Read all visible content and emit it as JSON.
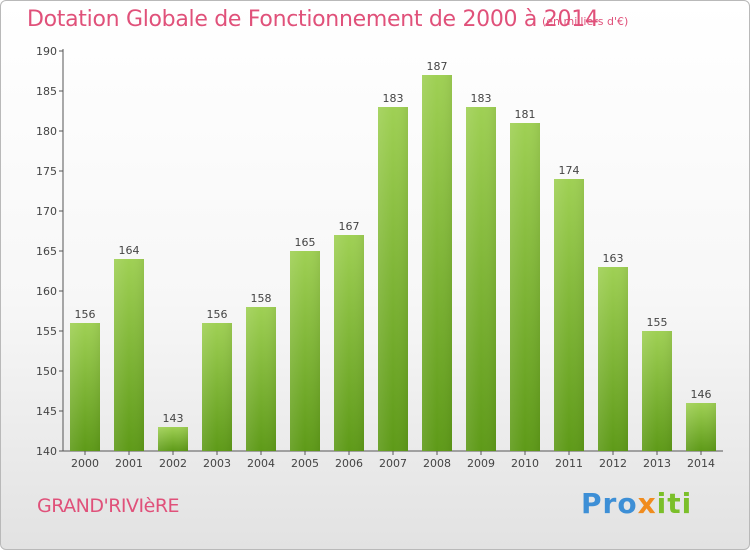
{
  "title": "Dotation Globale de Fonctionnement de 2000 à 2014",
  "unit_note": "(en milliers d'€)",
  "commune": "GRAND'RIVIèRE",
  "brand": {
    "p1": "Pro",
    "p2": "x",
    "p3": "iti"
  },
  "colors": {
    "accent": "#e0517a",
    "bar_top": "#9fd054",
    "bar_bottom": "#5e9a18"
  },
  "chart_data": {
    "type": "bar",
    "categories": [
      "2000",
      "2001",
      "2002",
      "2003",
      "2004",
      "2005",
      "2006",
      "2007",
      "2008",
      "2009",
      "2010",
      "2011",
      "2012",
      "2013",
      "2014"
    ],
    "values": [
      156,
      164,
      143,
      156,
      158,
      165,
      167,
      183,
      187,
      183,
      181,
      174,
      163,
      155,
      146
    ],
    "ylim": [
      140,
      190
    ],
    "yticks": [
      140,
      145,
      150,
      155,
      160,
      165,
      170,
      175,
      180,
      185,
      190
    ],
    "grid": false,
    "data_labels": true
  }
}
